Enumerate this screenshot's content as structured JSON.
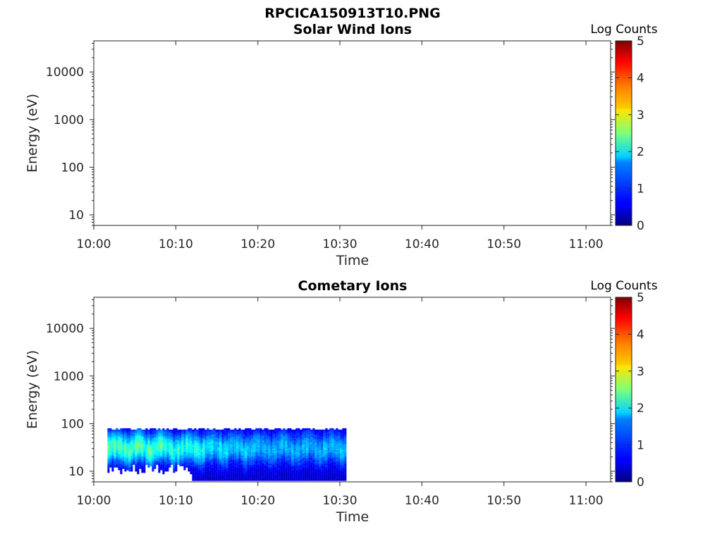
{
  "figure_title": "RPCICA150913T10.PNG",
  "chart_data": [
    {
      "type": "heatmap",
      "title": "Solar Wind Ions",
      "xlabel": "Time",
      "ylabel": "Energy (eV)",
      "x_ticks": [
        "10:00",
        "10:10",
        "10:20",
        "10:30",
        "10:40",
        "10:50",
        "11:00"
      ],
      "x_range_minutes": [
        0,
        63
      ],
      "y_ticks": [
        "10",
        "100",
        "1000",
        "10000"
      ],
      "y_scale": "log",
      "y_range_eV": [
        6,
        45000
      ],
      "colorbar": {
        "label": "Log Counts",
        "ticks": [
          "0",
          "1",
          "2",
          "3",
          "4",
          "5"
        ],
        "range": [
          0,
          5
        ],
        "colormap": "jet"
      },
      "data": []
    },
    {
      "type": "heatmap",
      "title": "Cometary Ions",
      "xlabel": "Time",
      "ylabel": "Energy (eV)",
      "x_ticks": [
        "10:00",
        "10:10",
        "10:20",
        "10:30",
        "10:40",
        "10:50",
        "11:00"
      ],
      "x_range_minutes": [
        0,
        63
      ],
      "y_ticks": [
        "10",
        "100",
        "1000",
        "10000"
      ],
      "y_scale": "log",
      "y_range_eV": [
        6,
        45000
      ],
      "colorbar": {
        "label": "Log Counts",
        "ticks": [
          "0",
          "1",
          "2",
          "3",
          "4",
          "5"
        ],
        "range": [
          0,
          5
        ],
        "colormap": "jet"
      },
      "data_time_range": [
        "10:01:40",
        "10:30:40"
      ],
      "data_energy_range_eV": [
        6,
        80
      ],
      "peak_band_energy_eV": [
        15,
        60
      ],
      "peak_log_counts_early": 2.2,
      "peak_log_counts_late": 1.2
    }
  ]
}
